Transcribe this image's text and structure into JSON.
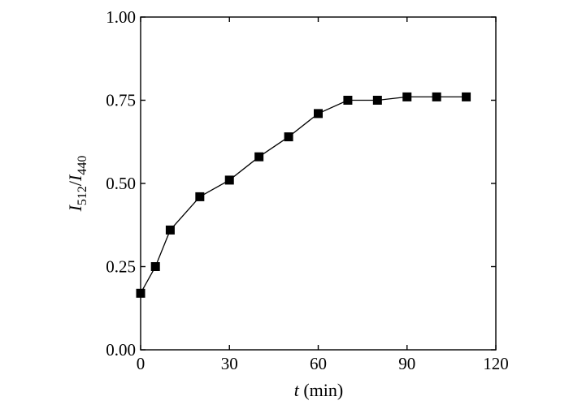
{
  "chart_data": {
    "type": "scatter",
    "title": "",
    "xlabel": "t (min)",
    "xlabel_parts": {
      "var": "t",
      "unit": " (min)"
    },
    "ylabel": "I512/I440",
    "ylabel_parts": {
      "num_var": "I",
      "num_sub": "512",
      "sep": "/",
      "den_var": "I",
      "den_sub": "440"
    },
    "xlim": [
      0,
      120
    ],
    "ylim": [
      0.0,
      1.0
    ],
    "xticks": [
      0,
      30,
      60,
      90,
      120
    ],
    "xtick_labels": [
      "0",
      "30",
      "60",
      "90",
      "120"
    ],
    "yticks": [
      0.0,
      0.25,
      0.5,
      0.75,
      1.0
    ],
    "ytick_labels": [
      "0.00",
      "0.25",
      "0.50",
      "0.75",
      "1.00"
    ],
    "grid": false,
    "marker": "square",
    "connected": true,
    "color": "#000000",
    "series": [
      {
        "x": [
          0,
          5,
          10,
          20,
          30,
          40,
          50,
          60,
          70,
          80,
          90,
          100,
          110
        ],
        "y": [
          0.17,
          0.25,
          0.36,
          0.46,
          0.51,
          0.58,
          0.64,
          0.71,
          0.75,
          0.75,
          0.76,
          0.76,
          0.76
        ]
      }
    ]
  }
}
